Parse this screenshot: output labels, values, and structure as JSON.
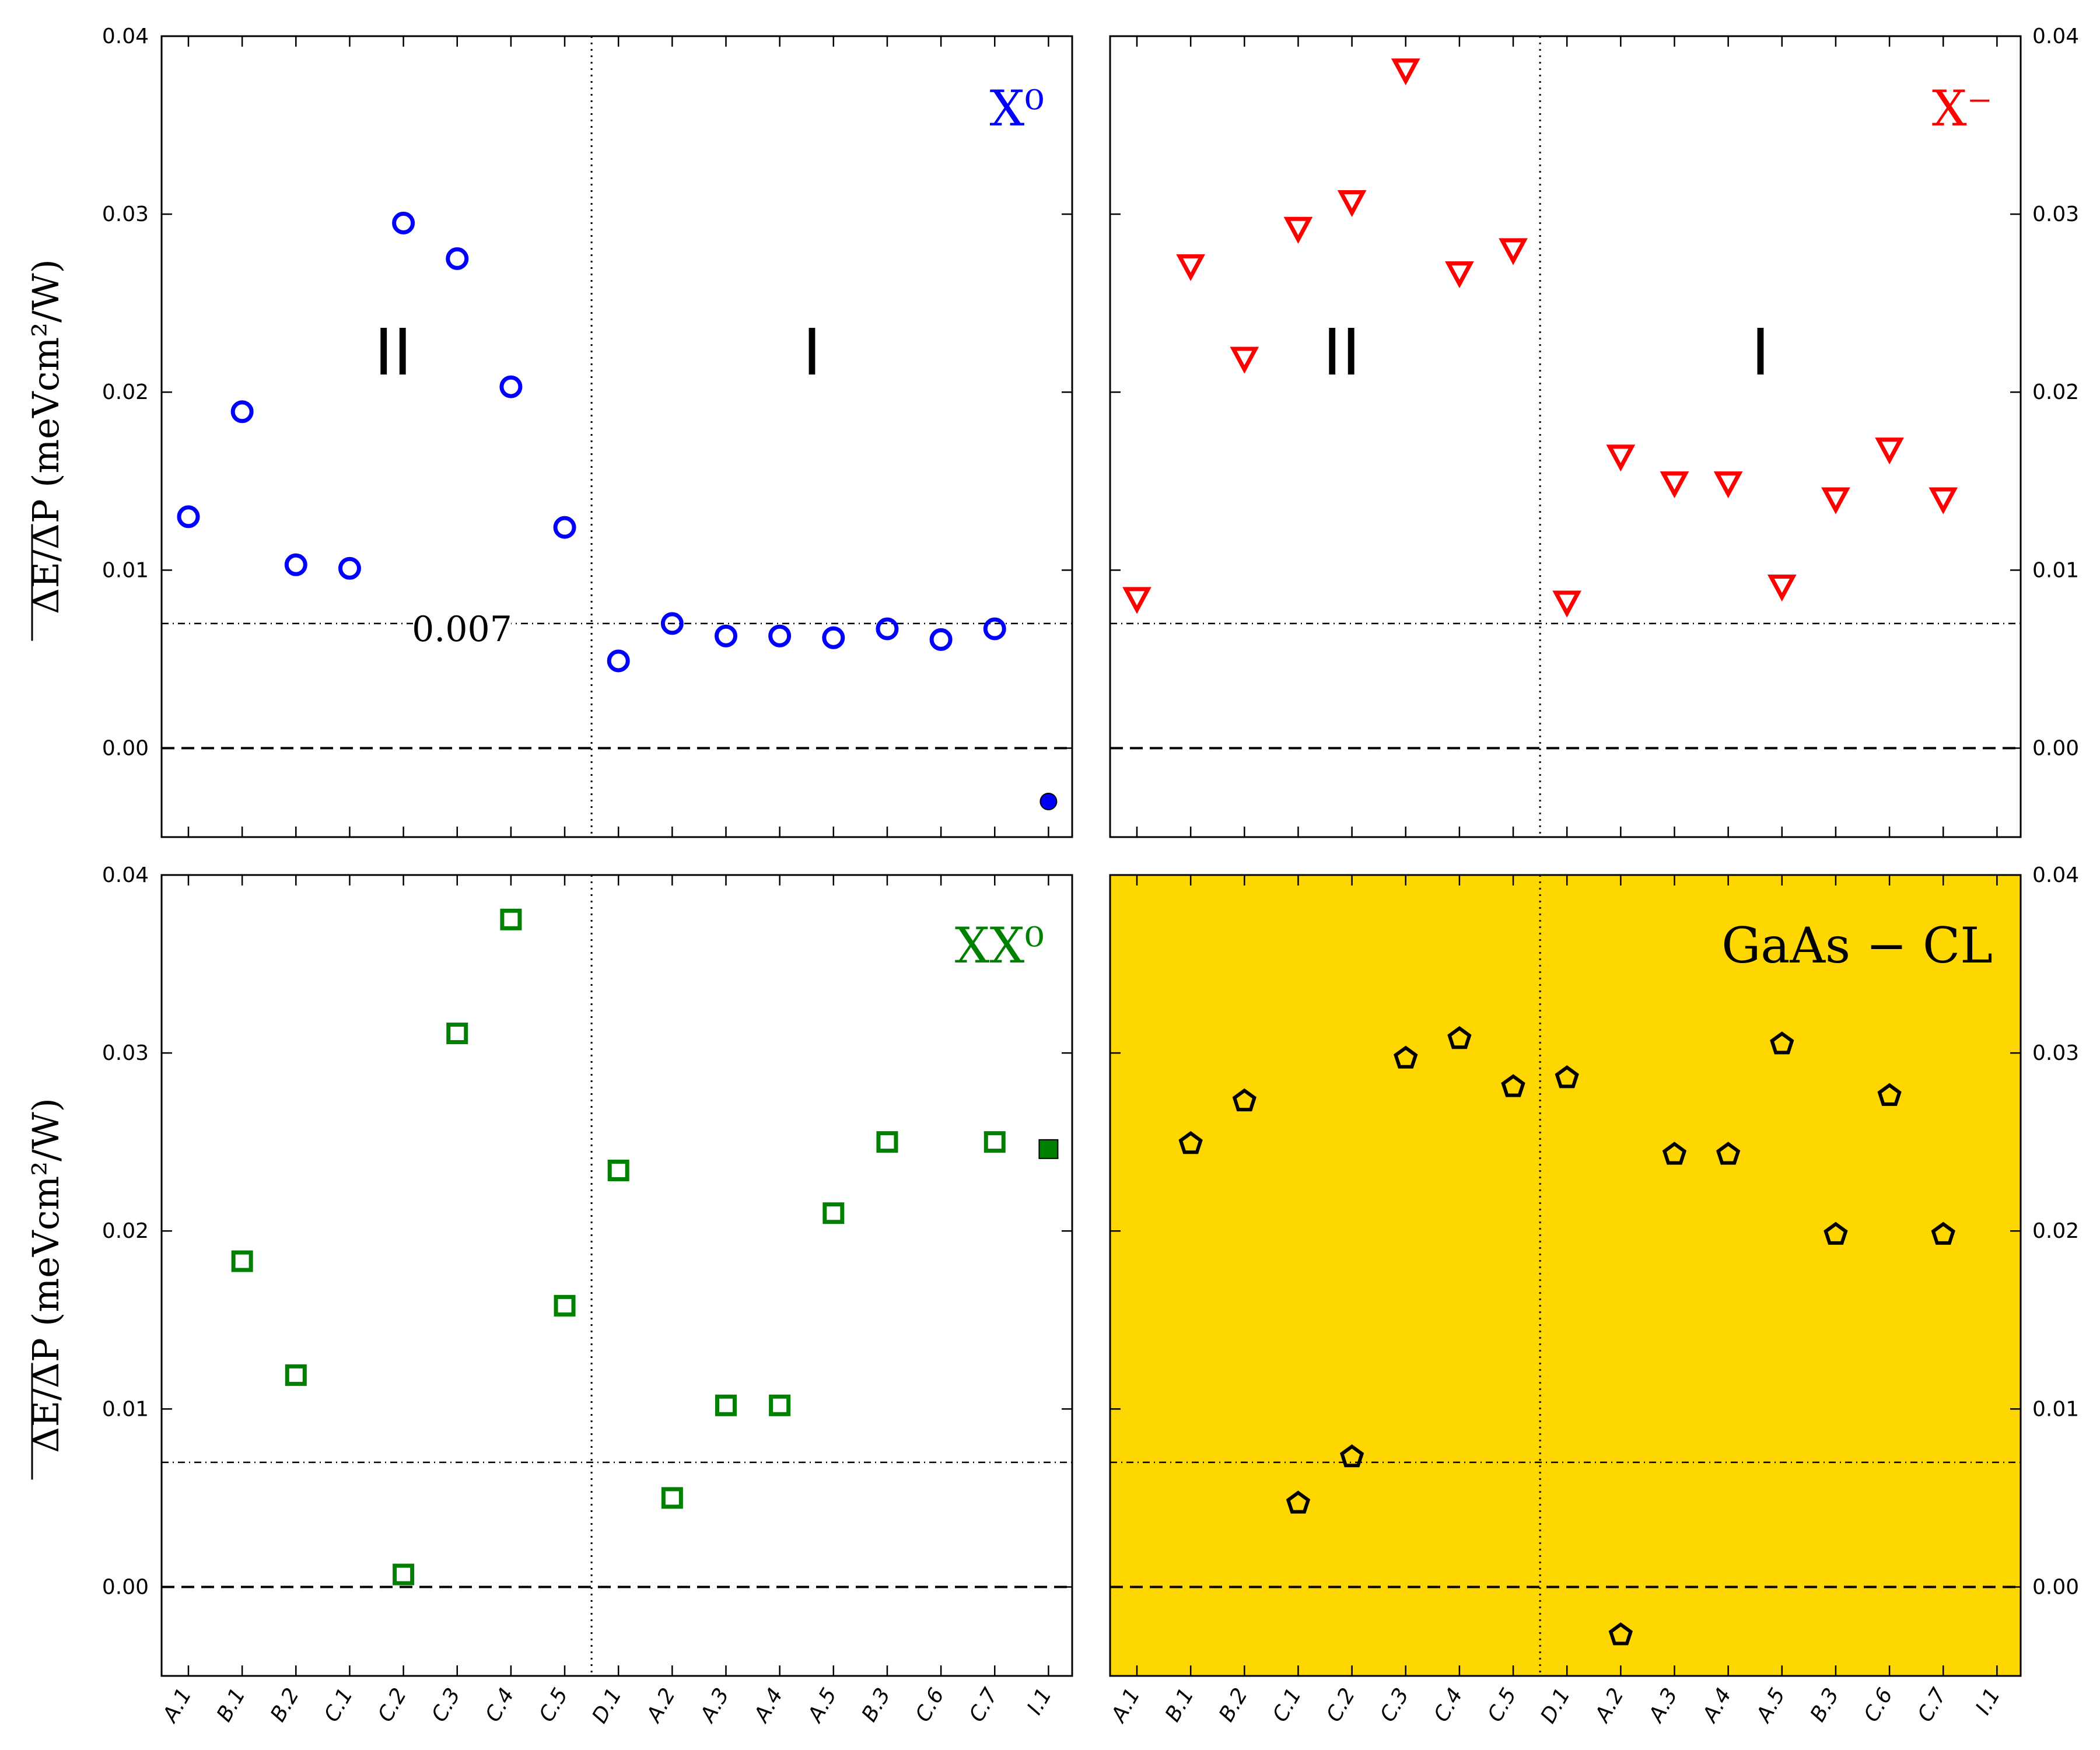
{
  "chart_data": [
    {
      "type": "scatter",
      "label": "X⁰",
      "label_color": "#0000ff",
      "marker": "circle",
      "color": "#0000ff",
      "background": "#ffffff",
      "ylabel": "ΔE/ΔP (meVcm²/W)",
      "ylim": [
        -0.005,
        0.04
      ],
      "yticks": [
        "0.00",
        "0.01",
        "0.02",
        "0.03",
        "0.04"
      ],
      "ytick_side": "left",
      "regions": [
        "II",
        "I"
      ],
      "region_divider_after": "C.5",
      "hline_dashdot": 0.007,
      "hline_dashdot_label": "0.007",
      "hline_dashed": 0.0,
      "categories": [
        "A.1",
        "B.1",
        "B.2",
        "C.1",
        "C.2",
        "C.3",
        "C.4",
        "C.5",
        "D.1",
        "A.2",
        "A.3",
        "A.4",
        "A.5",
        "B.3",
        "C.6",
        "C.7",
        "I.1"
      ],
      "values": [
        0.013,
        0.0189,
        0.0103,
        0.0101,
        0.0295,
        0.0275,
        0.0203,
        0.0124,
        0.0049,
        0.007,
        0.0063,
        0.0063,
        0.0062,
        0.0067,
        0.0061,
        0.0067,
        -0.003
      ],
      "filled_point": "I.1"
    },
    {
      "type": "scatter",
      "label": "X⁻",
      "label_color": "#ff0000",
      "marker": "triangle-down",
      "color": "#ff0000",
      "background": "#ffffff",
      "ylim": [
        -0.005,
        0.04
      ],
      "yticks": [
        "0.00",
        "0.01",
        "0.02",
        "0.03",
        "0.04"
      ],
      "ytick_side": "right",
      "regions": [
        "II",
        "I"
      ],
      "region_divider_after": "C.5",
      "hline_dashdot": 0.007,
      "hline_dashed": 0.0,
      "categories": [
        "A.1",
        "B.1",
        "B.2",
        "C.1",
        "C.2",
        "C.3",
        "C.4",
        "C.5",
        "D.1",
        "A.2",
        "A.3",
        "A.4",
        "A.5",
        "B.3",
        "C.6",
        "C.7",
        "I.1"
      ],
      "values": [
        0.0085,
        0.0272,
        0.022,
        0.0293,
        0.0308,
        0.0382,
        0.0268,
        0.0281,
        0.0083,
        0.0165,
        0.015,
        0.015,
        0.0092,
        0.0141,
        0.0169,
        0.0141,
        null
      ]
    },
    {
      "type": "scatter",
      "label": "XX⁰",
      "label_color": "#008000",
      "marker": "square",
      "color": "#008000",
      "background": "#ffffff",
      "ylabel": "ΔE/ΔP (meVcm²/W)",
      "ylim": [
        -0.005,
        0.04
      ],
      "yticks": [
        "0.00",
        "0.01",
        "0.02",
        "0.03",
        "0.04"
      ],
      "ytick_side": "left",
      "region_divider_after": "C.5",
      "hline_dashdot": 0.007,
      "hline_dashed": 0.0,
      "categories": [
        "A.1",
        "B.1",
        "B.2",
        "C.1",
        "C.2",
        "C.3",
        "C.4",
        "C.5",
        "D.1",
        "A.2",
        "A.3",
        "A.4",
        "A.5",
        "B.3",
        "C.6",
        "C.7",
        "I.1"
      ],
      "values": [
        null,
        0.0183,
        0.0119,
        null,
        0.0007,
        0.0311,
        0.0375,
        0.0158,
        0.0234,
        0.005,
        0.0102,
        0.0102,
        0.021,
        0.025,
        null,
        0.025,
        0.0246
      ],
      "filled_point": "I.1"
    },
    {
      "type": "scatter",
      "label": "GaAs − CL",
      "label_color": "#000000",
      "marker": "pentagon",
      "color": "#000000",
      "background": "#ffd700",
      "ylim": [
        -0.005,
        0.04
      ],
      "yticks": [
        "0.00",
        "0.01",
        "0.02",
        "0.03",
        "0.04"
      ],
      "ytick_side": "right",
      "region_divider_after": "C.5",
      "hline_dashdot": 0.007,
      "hline_dashed": 0.0,
      "categories": [
        "A.1",
        "B.1",
        "B.2",
        "C.1",
        "C.2",
        "C.3",
        "C.4",
        "C.5",
        "D.1",
        "A.2",
        "A.3",
        "A.4",
        "A.5",
        "B.3",
        "C.6",
        "C.7",
        "I.1"
      ],
      "values": [
        null,
        0.0249,
        0.0273,
        0.0047,
        0.0073,
        0.0297,
        0.0308,
        0.0281,
        0.0286,
        -0.0027,
        0.0243,
        0.0243,
        0.0305,
        0.0198,
        0.0276,
        0.0198,
        null
      ]
    }
  ]
}
